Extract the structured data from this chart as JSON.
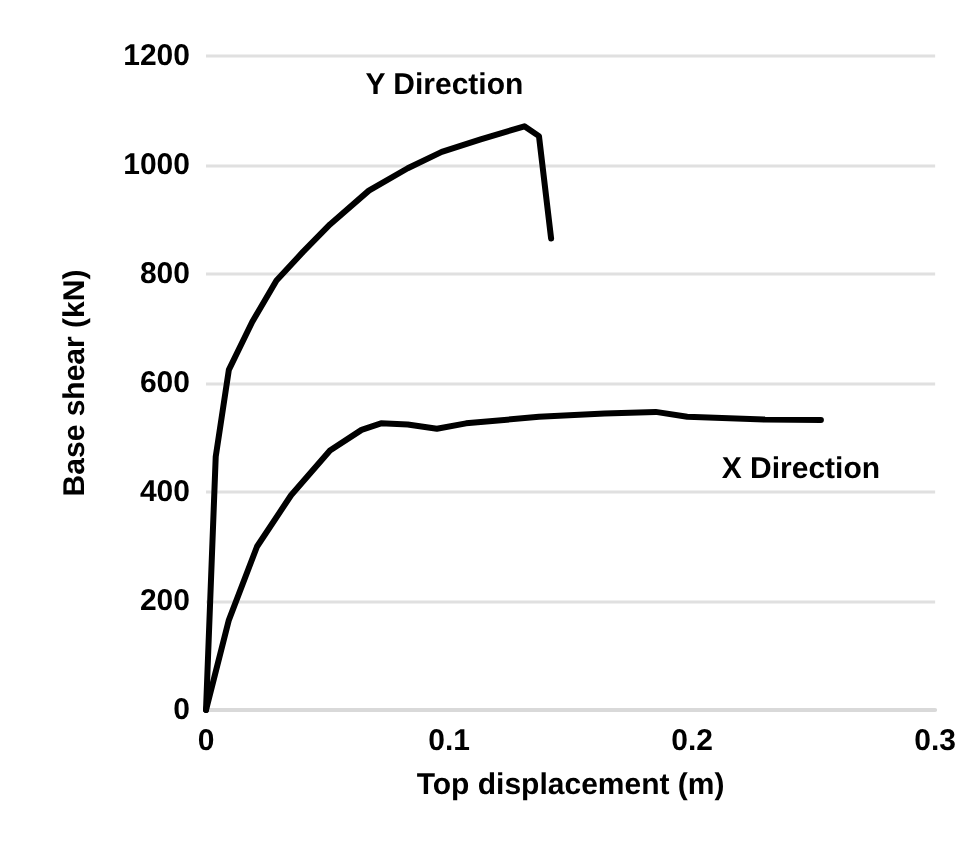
{
  "chart_data": {
    "type": "line",
    "xlabel": "Top displacement (m)",
    "ylabel": "Base shear (kN)",
    "xlim": [
      0,
      0.3
    ],
    "xticks": [
      0,
      0.1,
      0.2,
      0.3
    ],
    "ylim": [
      0,
      1200
    ],
    "yticks": [
      0,
      200,
      400,
      600,
      800,
      1000,
      1200
    ],
    "grid": "y",
    "marker": "none",
    "line_style": "solid",
    "series": [
      {
        "name": "Y Direction",
        "color": "#000000",
        "x": [
          0,
          0.004,
          0.0094,
          0.019,
          0.029,
          0.04,
          0.051,
          0.067,
          0.083,
          0.097,
          0.113,
          0.131,
          0.137,
          0.142
        ],
        "values": [
          0,
          465,
          624,
          712,
          788,
          841,
          891,
          953,
          994,
          1024,
          1047,
          1071,
          1053,
          865
        ]
      },
      {
        "name": "X Direction",
        "color": "#000000",
        "x": [
          0,
          0.0094,
          0.021,
          0.035,
          0.051,
          0.064,
          0.072,
          0.083,
          0.095,
          0.107,
          0.137,
          0.164,
          0.185,
          0.198,
          0.23,
          0.253
        ],
        "values": [
          0,
          165,
          300,
          394,
          476,
          514,
          526,
          524,
          516,
          526,
          538,
          544,
          547,
          538,
          533,
          532
        ]
      }
    ]
  }
}
